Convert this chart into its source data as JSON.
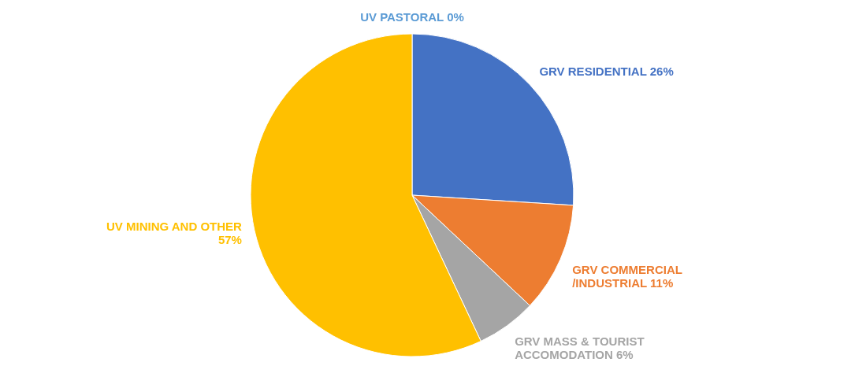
{
  "chart_data": {
    "type": "pie",
    "categories": [
      "UV PASTORAL",
      "GRV RESIDENTIAL",
      "GRV COMMERCIAL /INDUSTRIAL",
      "GRV MASS & TOURIST ACCOMODATION",
      "UV MINING AND OTHER"
    ],
    "values": [
      0,
      26,
      11,
      6,
      57
    ],
    "value_labels": [
      "0%",
      "26%",
      "11%",
      "6%",
      "57%"
    ],
    "colors": [
      "#5b9bd5",
      "#4472c4",
      "#ed7d31",
      "#a5a5a5",
      "#ffc000"
    ]
  }
}
